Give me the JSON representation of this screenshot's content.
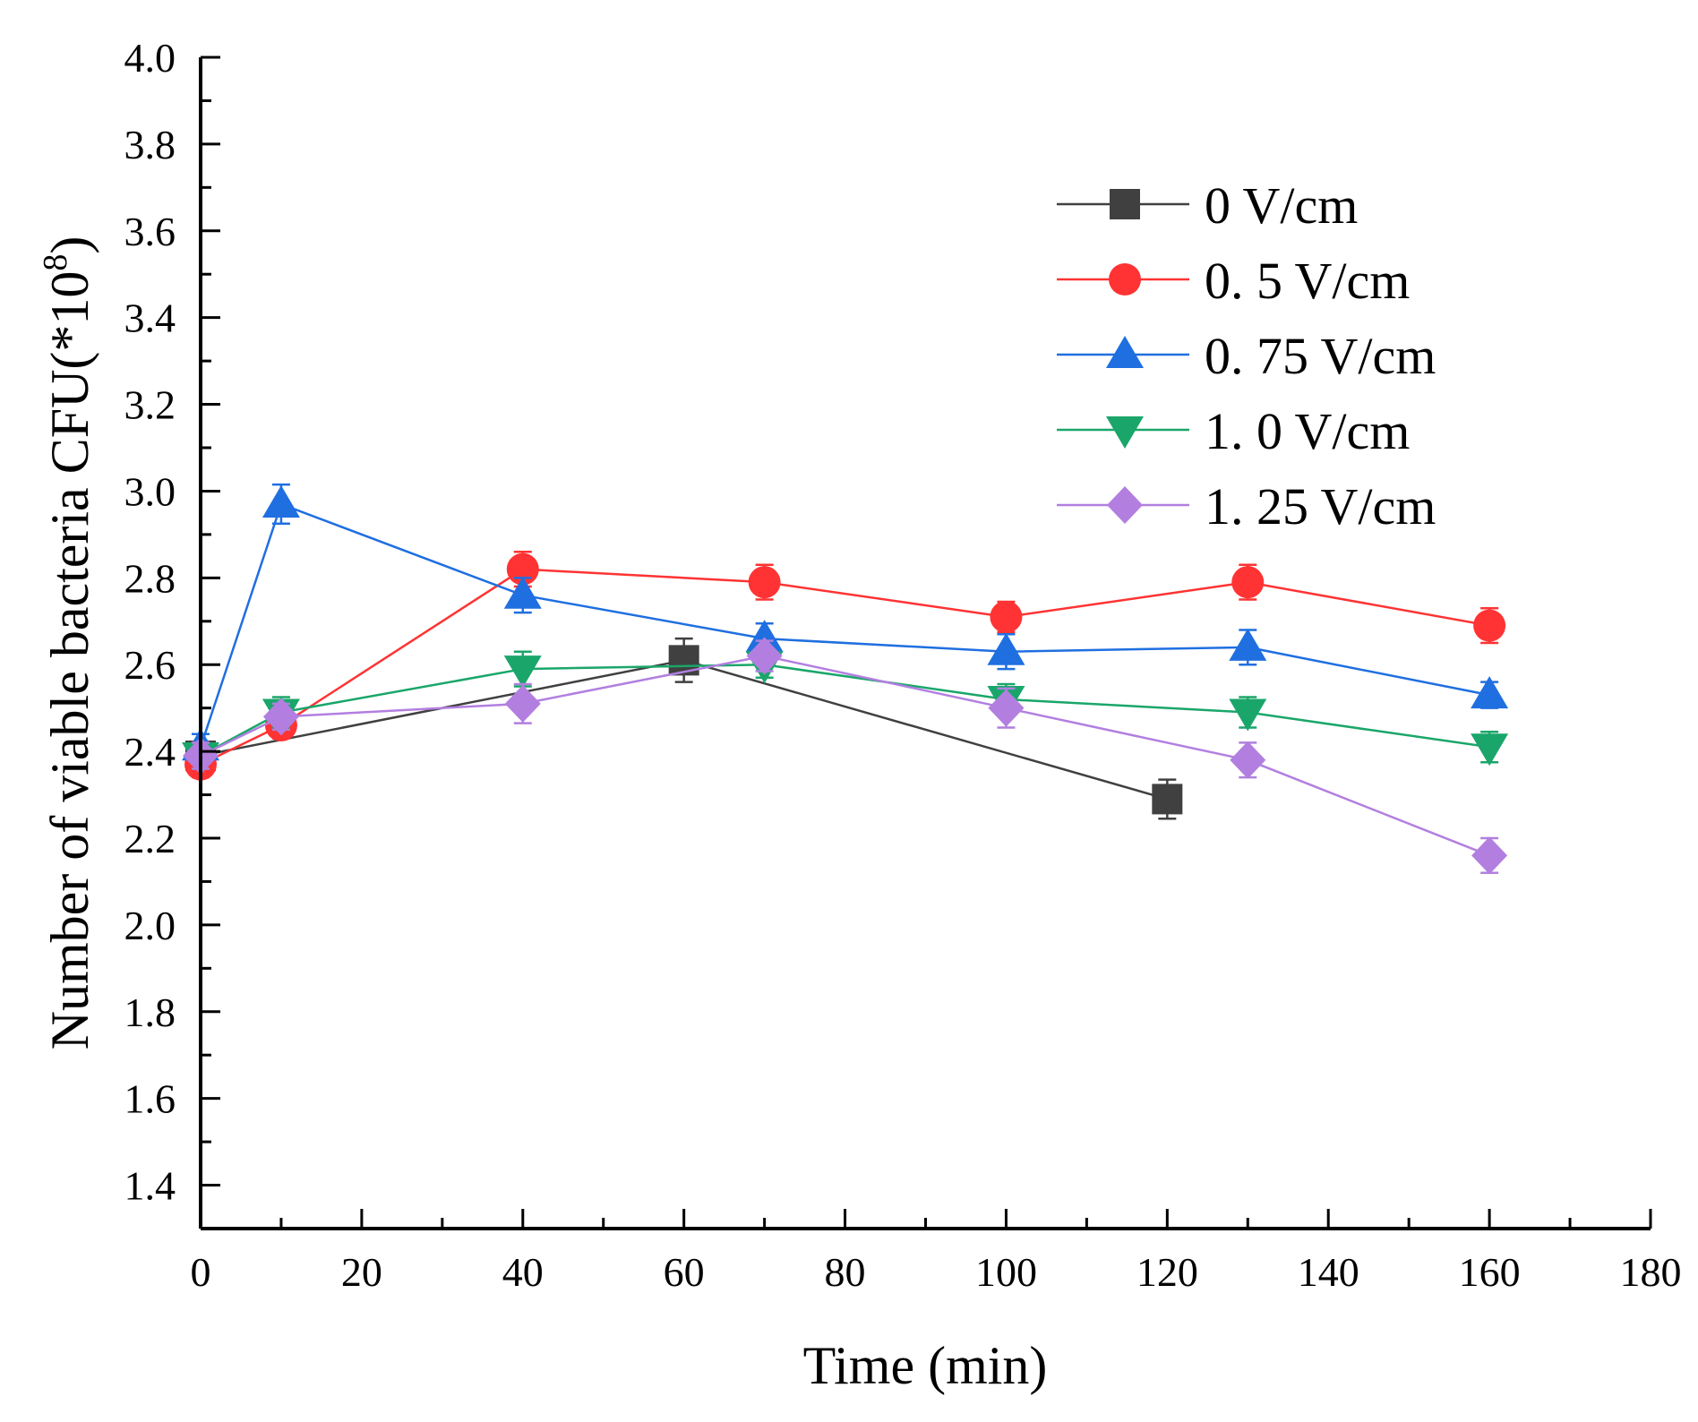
{
  "chart_data": {
    "type": "line",
    "title": "",
    "xlabel": "Time (min)",
    "ylabel_main": "Number of viable bacteria CFU(*10",
    "ylabel_exp": "8",
    "ylabel_close": ")",
    "xlim": [
      0,
      180
    ],
    "ylim": [
      1.3,
      4.0
    ],
    "x_ticks": [
      0,
      20,
      40,
      60,
      80,
      100,
      120,
      140,
      160,
      180
    ],
    "x_tick_labels": [
      "0",
      "20",
      "40",
      "60",
      "80",
      "100",
      "120",
      "140",
      "160",
      "180"
    ],
    "y_ticks": [
      1.4,
      1.6,
      1.8,
      2.0,
      2.2,
      2.4,
      2.6,
      2.8,
      3.0,
      3.2,
      3.4,
      3.6,
      3.8,
      4.0
    ],
    "y_tick_labels": [
      "1.4",
      "1.6",
      "1.8",
      "2.0",
      "2.2",
      "2.4",
      "2.6",
      "2.8",
      "3.0",
      "3.2",
      "3.4",
      "3.6",
      "3.8",
      "4.0"
    ],
    "grid": false,
    "legend_position": "top-right",
    "series": [
      {
        "name": "0 V/cm",
        "color": "#404040",
        "marker": "square",
        "x": [
          0,
          60,
          120
        ],
        "y": [
          2.39,
          2.61,
          2.29
        ],
        "err": [
          0.03,
          0.05,
          0.045
        ]
      },
      {
        "name": "0. 5 V/cm",
        "color": "#ff3333",
        "marker": "circle",
        "x": [
          0,
          10,
          40,
          70,
          100,
          130,
          160
        ],
        "y": [
          2.37,
          2.46,
          2.82,
          2.79,
          2.71,
          2.79,
          2.69
        ],
        "err": [
          0.03,
          0.03,
          0.04,
          0.04,
          0.035,
          0.04,
          0.04
        ]
      },
      {
        "name": "0. 75 V/cm",
        "color": "#1f6fe0",
        "marker": "triangle-up",
        "x": [
          0,
          10,
          40,
          70,
          100,
          130,
          160
        ],
        "y": [
          2.41,
          2.97,
          2.76,
          2.66,
          2.63,
          2.64,
          2.53
        ],
        "err": [
          0.03,
          0.045,
          0.04,
          0.035,
          0.04,
          0.04,
          0.03
        ]
      },
      {
        "name": "1. 0 V/cm",
        "color": "#1aa66a",
        "marker": "triangle-down",
        "x": [
          0,
          10,
          40,
          70,
          100,
          130,
          160
        ],
        "y": [
          2.39,
          2.49,
          2.59,
          2.6,
          2.52,
          2.49,
          2.41
        ],
        "err": [
          0.03,
          0.035,
          0.04,
          0.03,
          0.035,
          0.035,
          0.035
        ]
      },
      {
        "name": "1. 25 V/cm",
        "color": "#b27fe0",
        "marker": "diamond",
        "x": [
          0,
          10,
          40,
          70,
          100,
          130,
          160
        ],
        "y": [
          2.39,
          2.48,
          2.51,
          2.62,
          2.5,
          2.38,
          2.16
        ],
        "err": [
          0.03,
          0.03,
          0.045,
          0.035,
          0.045,
          0.04,
          0.04
        ]
      }
    ]
  }
}
